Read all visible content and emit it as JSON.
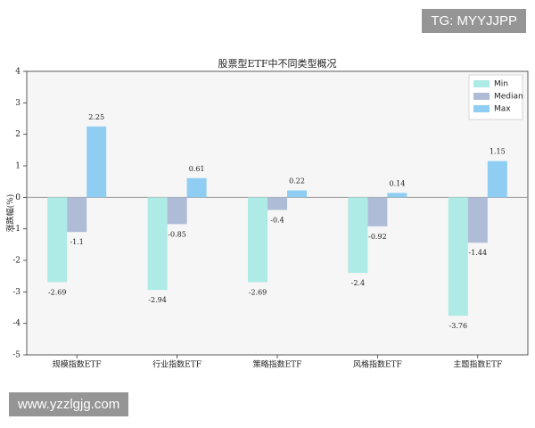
{
  "chart_data": {
    "type": "bar",
    "title": "股票型ETF中不同类型概况",
    "y_label": "涨跌幅(%)",
    "categories": [
      "规模指数ETF",
      "行业指数ETF",
      "策略指数ETF",
      "风格指数ETF",
      "主题指数ETF"
    ],
    "series": [
      {
        "name": "Min",
        "color": "#aeeae6",
        "values": [
          -2.69,
          -2.94,
          -2.69,
          -2.4,
          -3.76
        ]
      },
      {
        "name": "Median",
        "color": "#afbcd7",
        "values": [
          -1.1,
          -0.85,
          -0.4,
          -0.92,
          -1.44
        ]
      },
      {
        "name": "Max",
        "color": "#8fcdf3",
        "values": [
          2.25,
          0.61,
          0.22,
          0.14,
          1.15
        ]
      }
    ],
    "ylim": [
      -5,
      4
    ],
    "yticks": [
      -5,
      -4,
      -3,
      -2,
      -1,
      0,
      1,
      2,
      3,
      4
    ],
    "legend": "upper right"
  },
  "watermarks": [
    "TG: MYYJJPP",
    "www.yzzlgjg.com"
  ]
}
